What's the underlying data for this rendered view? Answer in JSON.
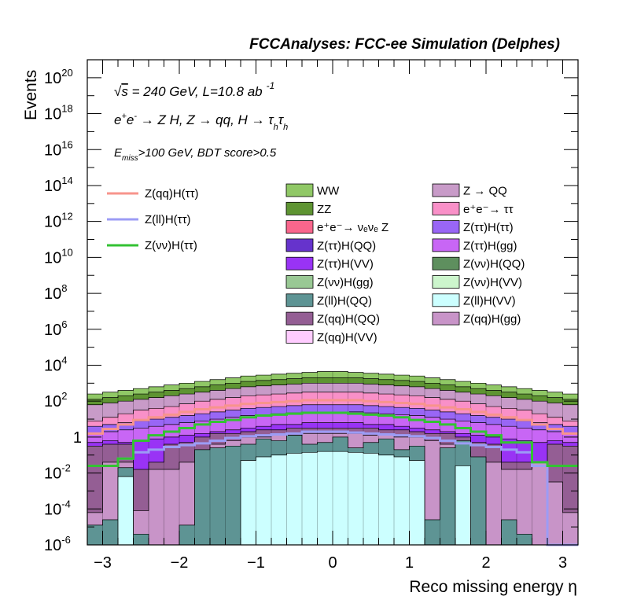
{
  "header": {
    "title": "FCCAnalyses: FCC-ee Simulation (Delphes)"
  },
  "chart_data": {
    "type": "stacked-histogram",
    "title": "FCCAnalyses: FCC-ee Simulation (Delphes)",
    "xlabel": "Reco missing energy η",
    "ylabel": "Events",
    "xlim": [
      -3.2,
      3.2
    ],
    "ylim": [
      1e-06,
      1e+21
    ],
    "yscale": "log",
    "grid": false,
    "x_ticks": [
      -3,
      -2,
      -1,
      0,
      1,
      2,
      3
    ],
    "x_tick_labels": [
      "−3",
      "−2",
      "−1",
      "0",
      "1",
      "2",
      "3"
    ],
    "y_ticks": [
      {
        "exp": -6,
        "base": "10",
        "sup": "-6"
      },
      {
        "exp": -4,
        "base": "10",
        "sup": "-4"
      },
      {
        "exp": -2,
        "base": "10",
        "sup": "-2"
      },
      {
        "exp": 0,
        "base": "1",
        "sup": ""
      },
      {
        "exp": 2,
        "base": "10",
        "sup": "2"
      },
      {
        "exp": 4,
        "base": "10",
        "sup": "4"
      },
      {
        "exp": 6,
        "base": "10",
        "sup": "6"
      },
      {
        "exp": 8,
        "base": "10",
        "sup": "8"
      },
      {
        "exp": 10,
        "base": "10",
        "sup": "10"
      },
      {
        "exp": 12,
        "base": "10",
        "sup": "12"
      },
      {
        "exp": 14,
        "base": "10",
        "sup": "14"
      },
      {
        "exp": 16,
        "base": "10",
        "sup": "16"
      },
      {
        "exp": 18,
        "base": "10",
        "sup": "18"
      },
      {
        "exp": 20,
        "base": "10",
        "sup": "20"
      }
    ],
    "annotations": {
      "sqrt_s": {
        "root": "√",
        "s": "s",
        "rest": " = 240 GeV, L=10.8 ab",
        "sup": "-1"
      },
      "process": {
        "a": "e",
        "a_sup": "+",
        "b": "e",
        "b_sup": "-",
        "rest": " → Z H, Z  → qq, H  → τ",
        "h1": "h",
        "tau2": "τ",
        "h2": "h"
      },
      "selection": {
        "e": "E",
        "sub": "miss",
        "rest": ">100 GeV, BDT score>0.5"
      }
    },
    "legend": {
      "placement": "top",
      "signal": [
        {
          "label": "Z(qq)H(ττ)",
          "color": "#f7948c"
        },
        {
          "label": "Z(ll)H(ττ)",
          "color": "#9c9cf5"
        },
        {
          "label": "Z(νν)H(ττ)",
          "color": "#33c233"
        }
      ],
      "backgrounds": [
        {
          "label": "WW",
          "color": "#90c866"
        },
        {
          "label": "Z → QQ",
          "color": "#c89bc8"
        },
        {
          "label": "ZZ",
          "color": "#5e9432"
        },
        {
          "label": "e⁺e⁻→ ττ",
          "color": "#f990c8"
        },
        {
          "label": "e⁺e⁻→ νₑνₑ Z",
          "color": "#f9668c"
        },
        {
          "label": "Z(ττ)H(ττ)",
          "color": "#9966f5"
        },
        {
          "label": "Z(ττ)H(QQ)",
          "color": "#6633cc"
        },
        {
          "label": "Z(ττ)H(gg)",
          "color": "#c866f5"
        },
        {
          "label": "Z(ττ)H(VV)",
          "color": "#9933f5"
        },
        {
          "label": "Z(νν)H(QQ)",
          "color": "#5e8f5e"
        },
        {
          "label": "Z(νν)H(gg)",
          "color": "#99c894"
        },
        {
          "label": "Z(νν)H(VV)",
          "color": "#ccf5cc"
        },
        {
          "label": "Z(ll)H(QQ)",
          "color": "#5e9494"
        },
        {
          "label": "Z(ll)H(VV)",
          "color": "#ccffff"
        },
        {
          "label": "Z(qq)H(QQ)",
          "color": "#945e94"
        },
        {
          "label": "Z(qq)H(gg)",
          "color": "#c894c8"
        },
        {
          "label": "Z(qq)H(VV)",
          "color": "#ffccff"
        }
      ]
    },
    "bin_edges": [
      -3.2,
      -3.0,
      -2.8,
      -2.6,
      -2.4,
      -2.2,
      -2.0,
      -1.8,
      -1.6,
      -1.4,
      -1.2,
      -1.0,
      -0.8,
      -0.6,
      -0.4,
      -0.2,
      0.0,
      0.2,
      0.4,
      0.6,
      0.8,
      1.0,
      1.2,
      1.4,
      1.6,
      1.8,
      2.0,
      2.2,
      2.4,
      2.6,
      2.8,
      3.0,
      3.2
    ],
    "stack_log10": {
      "bottom_to_top": [
        "Z(ll)H(VV)",
        "Z(ll)H(QQ)",
        "Z(qq)H(gg)",
        "Z(qq)H(QQ)",
        "Z(ττ)H(VV)",
        "Z(ττ)H(gg)",
        "Z(ττ)H(ττ)",
        "e⁺e⁻→ ττ",
        "Z → QQ",
        "ZZ",
        "WW"
      ],
      "Z(ll)H(VV)": [
        -6,
        -6,
        -2.2,
        -6,
        -6,
        -6,
        -6,
        -6,
        -6,
        -6,
        -1.3,
        -1.1,
        -1.0,
        -0.9,
        -0.85,
        -0.8,
        -0.8,
        -0.85,
        -0.9,
        -1.0,
        -1.1,
        -1.3,
        -6,
        -6,
        -1.6,
        -6,
        -6,
        -6,
        -6,
        -6,
        -6,
        -6
      ],
      "Z(ll)H(QQ)": [
        -4.9,
        -4.6,
        -1.7,
        -5.4,
        -6,
        -6,
        -4.9,
        -0.7,
        -0.6,
        -0.5,
        -0.4,
        -0.1,
        -0.2,
        0.1,
        -0.4,
        -0.3,
        0.0,
        -0.6,
        -0.3,
        -0.1,
        -0.7,
        -0.5,
        -4.6,
        -0.6,
        -0.2,
        -1.1,
        -6,
        -4.6,
        -5.4,
        -6,
        -6,
        -6
      ],
      "Z(qq)H(gg)": [
        -4.2,
        -1.4,
        -1.4,
        -4.1,
        -1.8,
        -1.8,
        -1.4,
        -0.8,
        -0.4,
        -0.2,
        0.0,
        0.0,
        0.1,
        0.1,
        0.2,
        0.2,
        0.2,
        0.2,
        0.1,
        0.1,
        0.0,
        0.0,
        -0.2,
        -0.4,
        -0.8,
        -1.4,
        -1.4,
        -1.8,
        -1.8,
        -1.4,
        -2.5,
        -4.2
      ],
      "Z(qq)H(QQ)": [
        -0.5,
        -0.4,
        -0.4,
        -1.8,
        -1.4,
        -0.4,
        -0.3,
        0.0,
        0.2,
        0.2,
        0.3,
        0.4,
        0.4,
        0.5,
        0.5,
        0.5,
        0.5,
        0.5,
        0.5,
        0.4,
        0.4,
        0.3,
        0.2,
        0.2,
        0.0,
        -0.3,
        -0.4,
        -1.4,
        -1.4,
        -1.8,
        -0.4,
        -0.5
      ],
      "Z(ττ)H(VV)": [
        -0.3,
        -0.2,
        -0.3,
        -0.2,
        -0.1,
        0.0,
        0.1,
        0.2,
        0.3,
        0.4,
        0.5,
        0.6,
        0.7,
        0.7,
        0.8,
        0.8,
        0.8,
        0.8,
        0.7,
        0.7,
        0.6,
        0.5,
        0.4,
        0.3,
        0.2,
        0.1,
        0.0,
        -0.1,
        -0.2,
        -0.3,
        -0.2,
        -0.3
      ],
      "Z(ττ)H(gg)": [
        0.2,
        0.3,
        0.4,
        0.5,
        0.6,
        0.7,
        0.8,
        0.9,
        1.0,
        1.1,
        1.2,
        1.25,
        1.3,
        1.35,
        1.4,
        1.4,
        1.4,
        1.4,
        1.35,
        1.3,
        1.25,
        1.2,
        1.1,
        1.0,
        0.9,
        0.8,
        0.7,
        0.6,
        0.5,
        0.4,
        0.3,
        0.2
      ],
      "Z(ττ)H(ττ)": [
        0.6,
        0.7,
        0.8,
        0.9,
        1.0,
        1.1,
        1.2,
        1.3,
        1.4,
        1.5,
        1.6,
        1.65,
        1.7,
        1.75,
        1.8,
        1.8,
        1.8,
        1.8,
        1.75,
        1.7,
        1.65,
        1.6,
        1.5,
        1.4,
        1.3,
        1.2,
        1.1,
        1.0,
        0.9,
        0.8,
        0.7,
        0.6
      ],
      "e⁺e⁻→ ττ": [
        0.9,
        1.1,
        1.3,
        1.5,
        1.6,
        1.7,
        1.85,
        2.0,
        2.1,
        2.2,
        2.3,
        2.35,
        2.4,
        2.45,
        2.5,
        2.5,
        2.5,
        2.5,
        2.45,
        2.4,
        2.35,
        2.3,
        2.2,
        2.1,
        2.0,
        1.85,
        1.7,
        1.6,
        1.5,
        1.3,
        1.1,
        0.9
      ],
      "Z → QQ": [
        1.8,
        1.9,
        2.0,
        2.1,
        2.2,
        2.3,
        2.4,
        2.5,
        2.6,
        2.7,
        2.8,
        2.85,
        2.9,
        2.95,
        3.0,
        3.0,
        3.0,
        3.0,
        2.95,
        2.9,
        2.85,
        2.8,
        2.7,
        2.6,
        2.5,
        2.4,
        2.3,
        2.2,
        2.1,
        2.0,
        1.9,
        1.8
      ],
      "ZZ": [
        2.1,
        2.2,
        2.3,
        2.4,
        2.5,
        2.6,
        2.7,
        2.8,
        2.9,
        3.0,
        3.1,
        3.15,
        3.2,
        3.25,
        3.3,
        3.3,
        3.3,
        3.3,
        3.25,
        3.2,
        3.15,
        3.1,
        3.0,
        2.9,
        2.8,
        2.7,
        2.6,
        2.5,
        2.4,
        2.3,
        2.2,
        2.1
      ],
      "WW": [
        2.4,
        2.5,
        2.6,
        2.7,
        2.8,
        2.9,
        3.0,
        3.1,
        3.2,
        3.3,
        3.4,
        3.45,
        3.5,
        3.55,
        3.6,
        3.65,
        3.65,
        3.6,
        3.55,
        3.5,
        3.45,
        3.4,
        3.3,
        3.2,
        3.1,
        3.0,
        2.9,
        2.8,
        2.7,
        2.6,
        2.5,
        2.4
      ]
    },
    "signal_lines_log10": {
      "Z(qq)H(ττ)": [
        0.2,
        0.45,
        0.7,
        0.95,
        1.1,
        1.25,
        1.4,
        1.55,
        1.65,
        1.75,
        1.85,
        1.9,
        1.95,
        2.0,
        2.05,
        2.05,
        2.05,
        2.05,
        2.0,
        1.95,
        1.9,
        1.85,
        1.75,
        1.65,
        1.55,
        1.4,
        1.25,
        1.1,
        0.95,
        0.7,
        0.45,
        0.2
      ],
      "Z(ll)H(ττ)": [
        -1.6,
        -1.6,
        -1.2,
        -0.85,
        -0.7,
        -0.55,
        -0.45,
        -0.35,
        -0.2,
        -0.05,
        0.05,
        0.1,
        0.15,
        0.2,
        0.3,
        0.3,
        0.3,
        0.25,
        0.2,
        0.15,
        0.1,
        0.05,
        -0.05,
        -0.2,
        -0.35,
        -0.45,
        -0.55,
        -0.7,
        -0.85,
        -1.6,
        -6,
        -6
      ],
      "Z(νν)H(ττ)": [
        -1.6,
        -1.6,
        -1.2,
        -0.2,
        0.1,
        0.3,
        0.5,
        0.7,
        0.85,
        0.95,
        1.1,
        1.2,
        1.25,
        1.3,
        1.35,
        1.35,
        1.35,
        1.3,
        1.25,
        1.2,
        1.1,
        0.95,
        0.85,
        0.7,
        0.5,
        0.3,
        0.1,
        -0.3,
        -0.3,
        -1.4,
        -1.6,
        -1.6
      ]
    }
  }
}
